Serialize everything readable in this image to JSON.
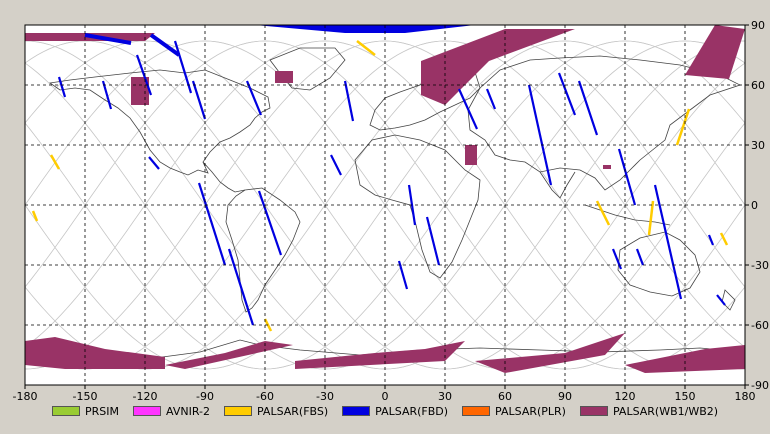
{
  "map": {
    "x_ticks": [
      "-180",
      "-150",
      "-120",
      "-90",
      "-60",
      "-30",
      "0",
      "30",
      "60",
      "90",
      "120",
      "150",
      "180"
    ],
    "y_ticks": [
      "90",
      "60",
      "30",
      "0",
      "-30",
      "-60",
      "-90"
    ],
    "lon_range": [
      -180,
      180
    ],
    "lat_range": [
      -90,
      90
    ],
    "grid": "dashed",
    "colors": {
      "frame": "#000000",
      "orbit": "#c8c8c8",
      "coast": "#444444",
      "background": "#ffffff"
    }
  },
  "legend": [
    {
      "label": "PRSIM",
      "color": "#99cc33"
    },
    {
      "label": "AVNIR-2",
      "color": "#ff33ff"
    },
    {
      "label": "PALSAR(FBS)",
      "color": "#ffcc00"
    },
    {
      "label": "PALSAR(FBD)",
      "color": "#0000e0"
    },
    {
      "label": "PALSAR(PLR)",
      "color": "#ff6600"
    },
    {
      "label": "PALSAR(WB1/WB2)",
      "color": "#993366"
    }
  ],
  "swaths": {
    "fbd": [
      [
        [
          -163,
          64
        ],
        [
          -160,
          54
        ]
      ],
      [
        [
          -141,
          62
        ],
        [
          -137,
          48
        ]
      ],
      [
        [
          -124,
          75
        ],
        [
          -117,
          55
        ]
      ],
      [
        [
          -105,
          82
        ],
        [
          -97,
          56
        ]
      ],
      [
        [
          -96,
          62
        ],
        [
          -90,
          43
        ]
      ],
      [
        [
          -69,
          62
        ],
        [
          -62,
          45
        ]
      ],
      [
        [
          -118,
          24
        ],
        [
          -113,
          18
        ]
      ],
      [
        [
          -93,
          11
        ],
        [
          -80,
          -30
        ]
      ],
      [
        [
          -78,
          -22
        ],
        [
          -66,
          -60
        ]
      ],
      [
        [
          -63,
          7
        ],
        [
          -52,
          -25
        ]
      ],
      [
        [
          -20,
          62
        ],
        [
          -16,
          42
        ]
      ],
      [
        [
          -27,
          25
        ],
        [
          -22,
          15
        ]
      ],
      [
        [
          12,
          10
        ],
        [
          15,
          -10
        ]
      ],
      [
        [
          21,
          -6
        ],
        [
          27,
          -30
        ]
      ],
      [
        [
          7,
          -28
        ],
        [
          11,
          -42
        ]
      ],
      [
        [
          37,
          58
        ],
        [
          46,
          38
        ]
      ],
      [
        [
          51,
          58
        ],
        [
          55,
          48
        ]
      ],
      [
        [
          72,
          60
        ],
        [
          83,
          10
        ]
      ],
      [
        [
          87,
          66
        ],
        [
          95,
          45
        ]
      ],
      [
        [
          97,
          62
        ],
        [
          106,
          35
        ]
      ],
      [
        [
          117,
          28
        ],
        [
          125,
          0
        ]
      ],
      [
        [
          114,
          -22
        ],
        [
          118,
          -32
        ]
      ],
      [
        [
          135,
          10
        ],
        [
          148,
          -47
        ]
      ],
      [
        [
          126,
          -22
        ],
        [
          129,
          -30
        ]
      ],
      [
        [
          166,
          -45
        ],
        [
          170,
          -50
        ]
      ],
      [
        [
          162,
          -15
        ],
        [
          164,
          -20
        ]
      ]
    ],
    "fbd_arcs": [
      [
        [
          -150,
          85
        ],
        [
          -127,
          81
        ]
      ],
      [
        [
          -117,
          85
        ],
        [
          -103,
          75
        ]
      ]
    ],
    "fbs": [
      [
        [
          -167,
          25
        ],
        [
          -163,
          18
        ]
      ],
      [
        [
          -176,
          -3
        ],
        [
          -174,
          -8
        ]
      ],
      [
        [
          -60,
          -57
        ],
        [
          -57,
          -63
        ]
      ],
      [
        [
          -14,
          82
        ],
        [
          -5,
          75
        ]
      ],
      [
        [
          106,
          2
        ],
        [
          112,
          -10
        ]
      ],
      [
        [
          134,
          2
        ],
        [
          132,
          -15
        ]
      ],
      [
        [
          152,
          48
        ],
        [
          146,
          30
        ]
      ],
      [
        [
          168,
          -14
        ],
        [
          171,
          -20
        ]
      ]
    ],
    "wb_boxes": [
      [
        -127,
        64,
        -118,
        50
      ],
      [
        -55,
        67,
        -46,
        61
      ],
      [
        22,
        66,
        37,
        61
      ],
      [
        40,
        30,
        46,
        20
      ],
      [
        109,
        20,
        113,
        18
      ]
    ],
    "wb_polys": [
      [
        [
          -180,
          86
        ],
        [
          -115,
          86
        ],
        [
          -120,
          82
        ],
        [
          -180,
          82
        ]
      ],
      [
        [
          18,
          72
        ],
        [
          60,
          88
        ],
        [
          95,
          88
        ],
        [
          52,
          72
        ],
        [
          30,
          50
        ],
        [
          18,
          55
        ]
      ],
      [
        [
          150,
          65
        ],
        [
          165,
          90
        ],
        [
          180,
          88
        ],
        [
          172,
          63
        ]
      ],
      [
        [
          -180,
          -68
        ],
        [
          -165,
          -66
        ],
        [
          -140,
          -72
        ],
        [
          -110,
          -76
        ],
        [
          -110,
          -82
        ],
        [
          -160,
          -82
        ],
        [
          -180,
          -80
        ]
      ],
      [
        [
          -110,
          -80
        ],
        [
          -80,
          -74
        ],
        [
          -60,
          -68
        ],
        [
          -46,
          -70
        ],
        [
          -100,
          -82
        ]
      ],
      [
        [
          -45,
          -78
        ],
        [
          -5,
          -74
        ],
        [
          20,
          -72
        ],
        [
          40,
          -68
        ],
        [
          30,
          -78
        ],
        [
          -45,
          -82
        ]
      ],
      [
        [
          45,
          -78
        ],
        [
          90,
          -74
        ],
        [
          120,
          -64
        ],
        [
          110,
          -75
        ],
        [
          60,
          -84
        ]
      ],
      [
        [
          120,
          -80
        ],
        [
          160,
          -72
        ],
        [
          180,
          -70
        ],
        [
          180,
          -82
        ],
        [
          130,
          -84
        ]
      ]
    ]
  }
}
